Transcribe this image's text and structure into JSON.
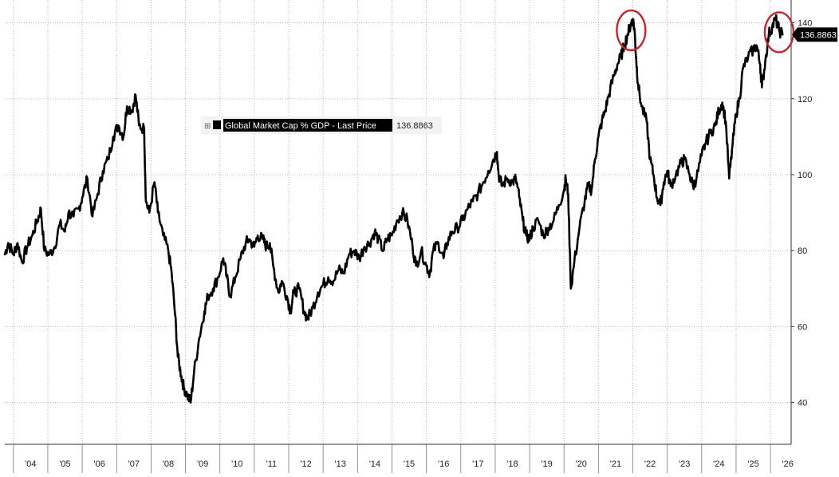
{
  "chart_data": {
    "type": "line",
    "title": "",
    "xlabel": "",
    "ylabel": "",
    "x_range": [
      2003.75,
      2026.6
    ],
    "ylim": [
      29,
      146
    ],
    "grid": true,
    "yticks": [
      40,
      60,
      80,
      100,
      120,
      140
    ],
    "xticks": [
      "'04",
      "'05",
      "'06",
      "'07",
      "'08",
      "'09",
      "'10",
      "'11",
      "'12",
      "'13",
      "'14",
      "'15",
      "'16",
      "'17",
      "'18",
      "'19",
      "'20",
      "'21",
      "'22",
      "'23",
      "'24",
      "'25",
      "'26"
    ],
    "legend": {
      "position": "top-center",
      "label": "Global Market Cap % GDP - Last Price",
      "value": "136.8863",
      "marker": "⊞"
    },
    "last_value_label": "136.8863",
    "colors": {
      "line": "#000000",
      "highlight": "#c1272d",
      "grid": "#b8b8b8"
    },
    "highlights": [
      {
        "x": 2021.95,
        "y": 138
      },
      {
        "x": 2026.25,
        "y": 137.5
      }
    ],
    "series": [
      {
        "name": "Global Market Cap % GDP - Last Price",
        "points": [
          [
            2003.75,
            79
          ],
          [
            2003.85,
            82
          ],
          [
            2004.0,
            79
          ],
          [
            2004.12,
            82
          ],
          [
            2004.25,
            77
          ],
          [
            2004.4,
            81
          ],
          [
            2004.55,
            84
          ],
          [
            2004.7,
            88
          ],
          [
            2004.8,
            91
          ],
          [
            2004.9,
            80
          ],
          [
            2005.05,
            79
          ],
          [
            2005.2,
            81
          ],
          [
            2005.35,
            87
          ],
          [
            2005.5,
            85
          ],
          [
            2005.6,
            90
          ],
          [
            2005.75,
            89
          ],
          [
            2005.9,
            91
          ],
          [
            2006.0,
            94
          ],
          [
            2006.15,
            99
          ],
          [
            2006.3,
            89
          ],
          [
            2006.45,
            95
          ],
          [
            2006.6,
            101
          ],
          [
            2006.75,
            104
          ],
          [
            2006.9,
            110
          ],
          [
            2007.05,
            113
          ],
          [
            2007.2,
            110
          ],
          [
            2007.3,
            118
          ],
          [
            2007.45,
            117
          ],
          [
            2007.55,
            121
          ],
          [
            2007.65,
            113
          ],
          [
            2007.8,
            112
          ],
          [
            2007.85,
            93
          ],
          [
            2007.95,
            90
          ],
          [
            2008.1,
            98
          ],
          [
            2008.2,
            90
          ],
          [
            2008.35,
            84
          ],
          [
            2008.5,
            80
          ],
          [
            2008.6,
            74
          ],
          [
            2008.7,
            63
          ],
          [
            2008.78,
            52
          ],
          [
            2008.88,
            47
          ],
          [
            2008.95,
            44
          ],
          [
            2009.05,
            42
          ],
          [
            2009.15,
            40
          ],
          [
            2009.25,
            48
          ],
          [
            2009.4,
            57
          ],
          [
            2009.55,
            64
          ],
          [
            2009.65,
            68
          ],
          [
            2009.8,
            70
          ],
          [
            2009.95,
            73
          ],
          [
            2010.1,
            78
          ],
          [
            2010.2,
            73
          ],
          [
            2010.3,
            68
          ],
          [
            2010.45,
            73
          ],
          [
            2010.6,
            78
          ],
          [
            2010.75,
            82
          ],
          [
            2010.85,
            83
          ],
          [
            2011.0,
            81
          ],
          [
            2011.1,
            84
          ],
          [
            2011.25,
            83
          ],
          [
            2011.35,
            81
          ],
          [
            2011.45,
            82
          ],
          [
            2011.55,
            76
          ],
          [
            2011.7,
            69
          ],
          [
            2011.8,
            72
          ],
          [
            2011.95,
            68
          ],
          [
            2012.05,
            64
          ],
          [
            2012.15,
            69
          ],
          [
            2012.3,
            70
          ],
          [
            2012.45,
            64
          ],
          [
            2012.55,
            62
          ],
          [
            2012.7,
            65
          ],
          [
            2012.85,
            69
          ],
          [
            2013.0,
            71
          ],
          [
            2013.15,
            73
          ],
          [
            2013.3,
            72
          ],
          [
            2013.45,
            75
          ],
          [
            2013.6,
            74
          ],
          [
            2013.75,
            79
          ],
          [
            2013.9,
            80
          ],
          [
            2014.05,
            78
          ],
          [
            2014.2,
            81
          ],
          [
            2014.35,
            82
          ],
          [
            2014.5,
            85
          ],
          [
            2014.6,
            83
          ],
          [
            2014.75,
            80
          ],
          [
            2014.85,
            83
          ],
          [
            2015.0,
            84
          ],
          [
            2015.15,
            88
          ],
          [
            2015.3,
            90
          ],
          [
            2015.45,
            88
          ],
          [
            2015.6,
            81
          ],
          [
            2015.7,
            76
          ],
          [
            2015.85,
            80
          ],
          [
            2016.0,
            76
          ],
          [
            2016.1,
            74
          ],
          [
            2016.2,
            80
          ],
          [
            2016.35,
            82
          ],
          [
            2016.5,
            78
          ],
          [
            2016.6,
            82
          ],
          [
            2016.75,
            85
          ],
          [
            2016.9,
            86
          ],
          [
            2017.05,
            88
          ],
          [
            2017.2,
            91
          ],
          [
            2017.35,
            93
          ],
          [
            2017.5,
            95
          ],
          [
            2017.65,
            98
          ],
          [
            2017.8,
            101
          ],
          [
            2017.95,
            104
          ],
          [
            2018.05,
            106
          ],
          [
            2018.1,
            100
          ],
          [
            2018.2,
            97
          ],
          [
            2018.35,
            99
          ],
          [
            2018.5,
            98
          ],
          [
            2018.6,
            99
          ],
          [
            2018.7,
            94
          ],
          [
            2018.8,
            88
          ],
          [
            2018.9,
            84
          ],
          [
            2019.0,
            83
          ],
          [
            2019.1,
            86
          ],
          [
            2019.25,
            88
          ],
          [
            2019.4,
            84
          ],
          [
            2019.55,
            86
          ],
          [
            2019.7,
            88
          ],
          [
            2019.85,
            92
          ],
          [
            2020.0,
            96
          ],
          [
            2020.05,
            99
          ],
          [
            2020.12,
            95
          ],
          [
            2020.2,
            70
          ],
          [
            2020.3,
            77
          ],
          [
            2020.45,
            86
          ],
          [
            2020.6,
            93
          ],
          [
            2020.7,
            97
          ],
          [
            2020.8,
            96
          ],
          [
            2020.9,
            104
          ],
          [
            2021.0,
            110
          ],
          [
            2021.1,
            114
          ],
          [
            2021.2,
            117
          ],
          [
            2021.3,
            121
          ],
          [
            2021.45,
            126
          ],
          [
            2021.55,
            129
          ],
          [
            2021.65,
            131
          ],
          [
            2021.75,
            134
          ],
          [
            2021.85,
            137
          ],
          [
            2021.95,
            140
          ],
          [
            2022.0,
            141
          ],
          [
            2022.05,
            138
          ],
          [
            2022.1,
            130
          ],
          [
            2022.15,
            124
          ],
          [
            2022.25,
            118
          ],
          [
            2022.4,
            114
          ],
          [
            2022.5,
            104
          ],
          [
            2022.6,
            100
          ],
          [
            2022.7,
            94
          ],
          [
            2022.8,
            92
          ],
          [
            2022.9,
            98
          ],
          [
            2023.0,
            101
          ],
          [
            2023.1,
            97
          ],
          [
            2023.25,
            100
          ],
          [
            2023.4,
            103
          ],
          [
            2023.5,
            104
          ],
          [
            2023.65,
            100
          ],
          [
            2023.75,
            97
          ],
          [
            2023.85,
            99
          ],
          [
            2024.0,
            105
          ],
          [
            2024.1,
            108
          ],
          [
            2024.25,
            111
          ],
          [
            2024.4,
            113
          ],
          [
            2024.5,
            117
          ],
          [
            2024.6,
            119
          ],
          [
            2024.7,
            114
          ],
          [
            2024.8,
            99
          ],
          [
            2024.9,
            108
          ],
          [
            2025.0,
            116
          ],
          [
            2025.1,
            120
          ],
          [
            2025.2,
            128
          ],
          [
            2025.35,
            131
          ],
          [
            2025.5,
            133
          ],
          [
            2025.6,
            134
          ],
          [
            2025.7,
            129
          ],
          [
            2025.75,
            123
          ],
          [
            2025.85,
            130
          ],
          [
            2025.95,
            137
          ],
          [
            2026.05,
            139
          ],
          [
            2026.15,
            141
          ],
          [
            2026.25,
            138
          ],
          [
            2026.35,
            136.9
          ]
        ]
      }
    ]
  }
}
